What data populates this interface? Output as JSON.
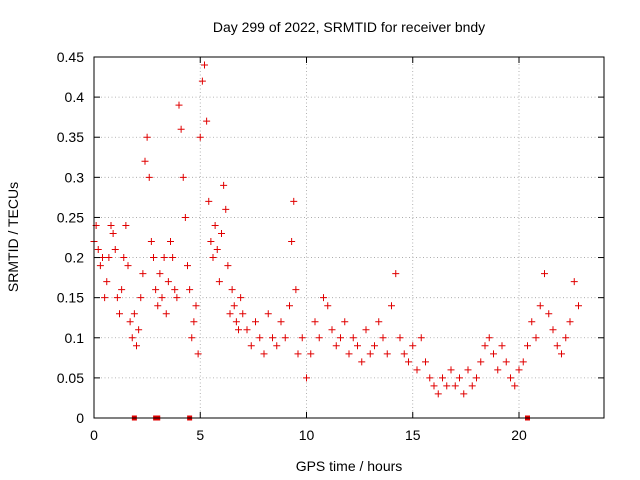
{
  "chart_data": {
    "type": "scatter",
    "title": "Day 299 of 2022, SRMTID for receiver bndy",
    "xlabel": "GPS time / hours",
    "ylabel": "SRMTID / TECUs",
    "xlim": [
      0,
      24
    ],
    "ylim": [
      0,
      0.45
    ],
    "x_ticks": [
      0,
      5,
      10,
      15,
      20
    ],
    "y_ticks": [
      0,
      0.05,
      0.1,
      0.15,
      0.2,
      0.25,
      0.3,
      0.35,
      0.4,
      0.45
    ],
    "x_tick_labels": [
      "0",
      "5",
      "10",
      "15",
      "20"
    ],
    "y_tick_labels": [
      "0",
      "0.05",
      "0.1",
      "0.15",
      "0.2",
      "0.25",
      "0.3",
      "0.35",
      "0.4",
      "0.45"
    ],
    "grid": true,
    "marker": "+",
    "color": "#e00000",
    "baseline_markers_x": [
      1.9,
      2.9,
      3.0,
      4.5,
      20.4
    ],
    "series": [
      {
        "name": "SRMTID",
        "x": [
          0.0,
          0.1,
          0.2,
          0.3,
          0.4,
          0.5,
          0.6,
          0.7,
          0.8,
          0.9,
          1.0,
          1.1,
          1.2,
          1.3,
          1.4,
          1.5,
          1.6,
          1.7,
          1.8,
          1.9,
          2.0,
          2.1,
          2.2,
          2.3,
          2.4,
          2.5,
          2.6,
          2.7,
          2.8,
          2.9,
          3.0,
          3.1,
          3.2,
          3.3,
          3.4,
          3.5,
          3.6,
          3.7,
          3.8,
          3.9,
          4.0,
          4.1,
          4.2,
          4.3,
          4.4,
          4.5,
          4.6,
          4.7,
          4.8,
          4.9,
          5.0,
          5.1,
          5.2,
          5.3,
          5.4,
          5.5,
          5.6,
          5.7,
          5.8,
          5.9,
          6.0,
          6.1,
          6.2,
          6.3,
          6.4,
          6.5,
          6.6,
          6.7,
          6.8,
          6.9,
          7.0,
          7.2,
          7.4,
          7.6,
          7.8,
          8.0,
          8.2,
          8.4,
          8.6,
          8.8,
          9.0,
          9.2,
          9.3,
          9.4,
          9.5,
          9.6,
          9.8,
          10.0,
          10.2,
          10.4,
          10.6,
          10.8,
          11.0,
          11.2,
          11.4,
          11.6,
          11.8,
          12.0,
          12.2,
          12.4,
          12.6,
          12.8,
          13.0,
          13.2,
          13.4,
          13.6,
          13.8,
          14.0,
          14.2,
          14.4,
          14.6,
          14.8,
          15.0,
          15.2,
          15.4,
          15.6,
          15.8,
          16.0,
          16.2,
          16.4,
          16.6,
          16.8,
          17.0,
          17.2,
          17.4,
          17.6,
          17.8,
          18.0,
          18.2,
          18.4,
          18.6,
          18.8,
          19.0,
          19.2,
          19.4,
          19.6,
          19.8,
          20.0,
          20.2,
          20.4,
          20.6,
          20.8,
          21.0,
          21.2,
          21.4,
          21.6,
          21.8,
          22.0,
          22.2,
          22.4,
          22.6,
          22.8
        ],
        "y": [
          0.22,
          0.24,
          0.21,
          0.19,
          0.2,
          0.15,
          0.17,
          0.2,
          0.24,
          0.23,
          0.21,
          0.15,
          0.13,
          0.16,
          0.2,
          0.24,
          0.19,
          0.12,
          0.1,
          0.13,
          0.09,
          0.11,
          0.15,
          0.18,
          0.32,
          0.35,
          0.3,
          0.22,
          0.2,
          0.16,
          0.14,
          0.18,
          0.15,
          0.2,
          0.13,
          0.17,
          0.22,
          0.2,
          0.16,
          0.15,
          0.39,
          0.36,
          0.3,
          0.25,
          0.19,
          0.16,
          0.1,
          0.12,
          0.14,
          0.08,
          0.35,
          0.42,
          0.44,
          0.37,
          0.27,
          0.22,
          0.2,
          0.24,
          0.21,
          0.17,
          0.23,
          0.29,
          0.26,
          0.19,
          0.13,
          0.16,
          0.14,
          0.12,
          0.11,
          0.15,
          0.13,
          0.11,
          0.09,
          0.12,
          0.1,
          0.08,
          0.13,
          0.1,
          0.09,
          0.12,
          0.1,
          0.14,
          0.22,
          0.27,
          0.16,
          0.08,
          0.1,
          0.05,
          0.08,
          0.12,
          0.1,
          0.15,
          0.14,
          0.11,
          0.09,
          0.1,
          0.12,
          0.08,
          0.1,
          0.09,
          0.07,
          0.11,
          0.08,
          0.09,
          0.12,
          0.1,
          0.08,
          0.14,
          0.18,
          0.1,
          0.08,
          0.07,
          0.09,
          0.06,
          0.1,
          0.07,
          0.05,
          0.04,
          0.03,
          0.05,
          0.04,
          0.06,
          0.04,
          0.05,
          0.03,
          0.06,
          0.04,
          0.05,
          0.07,
          0.09,
          0.1,
          0.08,
          0.06,
          0.09,
          0.07,
          0.05,
          0.04,
          0.06,
          0.07,
          0.09,
          0.12,
          0.1,
          0.14,
          0.18,
          0.13,
          0.11,
          0.09,
          0.08,
          0.1,
          0.12,
          0.17,
          0.14
        ]
      }
    ]
  }
}
